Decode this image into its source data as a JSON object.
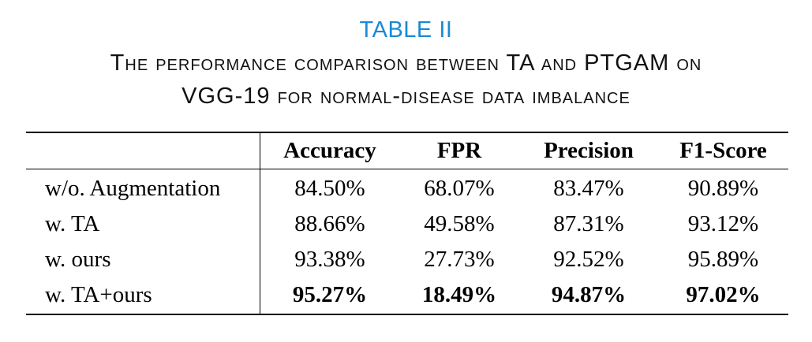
{
  "table": {
    "label": "TABLE II",
    "caption_line1": "The performance comparison between TA and PTGAM on",
    "caption_line2": "VGG-19 for normal-disease data imbalance",
    "columns": [
      "Accuracy",
      "FPR",
      "Precision",
      "F1-Score"
    ],
    "rows": [
      {
        "label": "w/o. Augmentation",
        "values": [
          "84.50%",
          "68.07%",
          "83.47%",
          "90.89%"
        ],
        "bold": false
      },
      {
        "label": "w. TA",
        "values": [
          "88.66%",
          "49.58%",
          "87.31%",
          "93.12%"
        ],
        "bold": false
      },
      {
        "label": "w. ours",
        "values": [
          "93.38%",
          "27.73%",
          "92.52%",
          "95.89%"
        ],
        "bold": false
      },
      {
        "label": "w. TA+ours",
        "values": [
          "95.27%",
          "18.49%",
          "94.87%",
          "97.02%"
        ],
        "bold": true
      }
    ]
  },
  "colors": {
    "label": "#1a8ad4",
    "text": "#000000"
  }
}
